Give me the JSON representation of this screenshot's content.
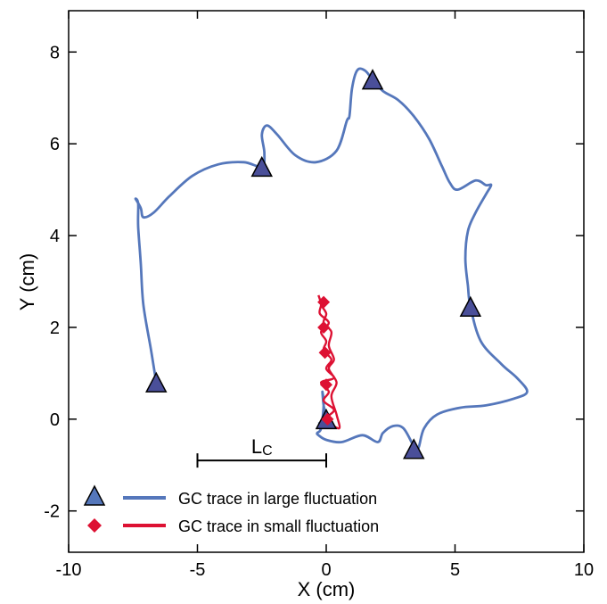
{
  "chart_data": {
    "type": "line",
    "title": "",
    "xlabel": "X (cm)",
    "ylabel": "Y (cm)",
    "xlim": [
      -10,
      10
    ],
    "ylim": [
      -2.9,
      8.9
    ],
    "xticks": [
      -10,
      -5,
      0,
      5,
      10
    ],
    "yticks": [
      -2,
      0,
      2,
      4,
      6,
      8
    ],
    "grid": false,
    "legend_position": "bottom-left",
    "scale_bar": {
      "label": "L",
      "subscript": "C",
      "x_start": -5,
      "x_end": 0,
      "y": -0.9
    },
    "colors": {
      "large": "#5577bb",
      "large_marker": "#4a4f99",
      "small": "#dd1133"
    },
    "series": [
      {
        "name": "GC trace in large fluctuation",
        "marker": "triangle",
        "points": [
          [
            -6.6,
            0.8
          ],
          [
            -6.8,
            1.5
          ],
          [
            -7.1,
            2.5
          ],
          [
            -7.2,
            3.4
          ],
          [
            -7.3,
            4.2
          ],
          [
            -7.3,
            4.7
          ],
          [
            -7.4,
            4.8
          ],
          [
            -7.2,
            4.6
          ],
          [
            -7.1,
            4.4
          ],
          [
            -6.7,
            4.5
          ],
          [
            -6.1,
            4.85
          ],
          [
            -5.2,
            5.3
          ],
          [
            -4.2,
            5.55
          ],
          [
            -3.2,
            5.6
          ],
          [
            -2.5,
            5.5
          ],
          [
            -2.4,
            5.8
          ],
          [
            -2.5,
            6.2
          ],
          [
            -2.3,
            6.4
          ],
          [
            -1.9,
            6.2
          ],
          [
            -1.2,
            5.75
          ],
          [
            -0.4,
            5.6
          ],
          [
            0.4,
            5.85
          ],
          [
            0.8,
            6.5
          ],
          [
            0.9,
            6.6
          ],
          [
            1.0,
            7.2
          ],
          [
            1.2,
            7.6
          ],
          [
            1.5,
            7.6
          ],
          [
            1.8,
            7.4
          ],
          [
            2.2,
            7.15
          ],
          [
            2.8,
            6.95
          ],
          [
            3.4,
            6.6
          ],
          [
            4.0,
            6.1
          ],
          [
            4.5,
            5.5
          ],
          [
            4.8,
            5.15
          ],
          [
            5.1,
            5.0
          ],
          [
            5.8,
            5.2
          ],
          [
            6.2,
            5.1
          ],
          [
            6.4,
            5.1
          ],
          [
            6.2,
            4.9
          ],
          [
            5.8,
            4.5
          ],
          [
            5.5,
            4.1
          ],
          [
            5.4,
            3.5
          ],
          [
            5.5,
            2.9
          ],
          [
            5.6,
            2.45
          ],
          [
            6.0,
            1.7
          ],
          [
            6.8,
            1.2
          ],
          [
            7.4,
            0.9
          ],
          [
            7.8,
            0.6
          ],
          [
            7.3,
            0.45
          ],
          [
            6.2,
            0.3
          ],
          [
            5.2,
            0.25
          ],
          [
            4.3,
            0.1
          ],
          [
            3.8,
            -0.2
          ],
          [
            3.6,
            -0.6
          ],
          [
            3.5,
            -0.7
          ],
          [
            3.4,
            -0.6
          ],
          [
            3.0,
            -0.2
          ],
          [
            2.6,
            -0.15
          ],
          [
            2.2,
            -0.3
          ],
          [
            2.0,
            -0.5
          ],
          [
            1.4,
            -0.35
          ],
          [
            0.6,
            -0.5
          ],
          [
            0.0,
            -0.45
          ],
          [
            -0.3,
            -0.35
          ],
          [
            -0.35,
            -0.3
          ],
          [
            -0.2,
            -0.2
          ],
          [
            -0.1,
            0.3
          ],
          [
            -0.15,
            0.6
          ],
          [
            -0.1,
            0.3
          ],
          [
            0.0,
            0.0
          ],
          [
            -0.3,
            -0.1
          ]
        ],
        "markers": [
          [
            -6.6,
            0.75
          ],
          [
            -2.5,
            5.45
          ],
          [
            1.8,
            7.35
          ],
          [
            5.6,
            2.4
          ],
          [
            3.4,
            -0.7
          ],
          [
            0.0,
            -0.05
          ]
        ]
      },
      {
        "name": "GC trace in small fluctuation",
        "marker": "diamond",
        "points": [
          [
            -0.3,
            2.7
          ],
          [
            -0.2,
            2.5
          ],
          [
            -0.25,
            2.3
          ],
          [
            0.1,
            2.1
          ],
          [
            -0.2,
            1.9
          ],
          [
            0.0,
            1.7
          ],
          [
            -0.1,
            1.5
          ],
          [
            0.2,
            1.3
          ],
          [
            0.0,
            1.1
          ],
          [
            0.3,
            0.9
          ],
          [
            -0.2,
            0.8
          ],
          [
            0.1,
            0.6
          ],
          [
            -0.1,
            0.4
          ],
          [
            0.3,
            0.2
          ],
          [
            0.0,
            0.0
          ],
          [
            0.5,
            -0.2
          ],
          [
            0.4,
            0.1
          ],
          [
            0.2,
            0.5
          ],
          [
            0.4,
            0.8
          ],
          [
            0.1,
            1.1
          ],
          [
            0.3,
            1.3
          ],
          [
            0.1,
            1.6
          ],
          [
            0.2,
            1.9
          ],
          [
            -0.1,
            2.1
          ],
          [
            0.0,
            2.3
          ],
          [
            -0.2,
            2.5
          ],
          [
            -0.1,
            2.65
          ]
        ],
        "markers": [
          [
            -0.1,
            2.55
          ],
          [
            -0.1,
            2.0
          ],
          [
            -0.05,
            1.45
          ],
          [
            0.0,
            0.75
          ],
          [
            0.05,
            0.0
          ]
        ]
      }
    ]
  }
}
